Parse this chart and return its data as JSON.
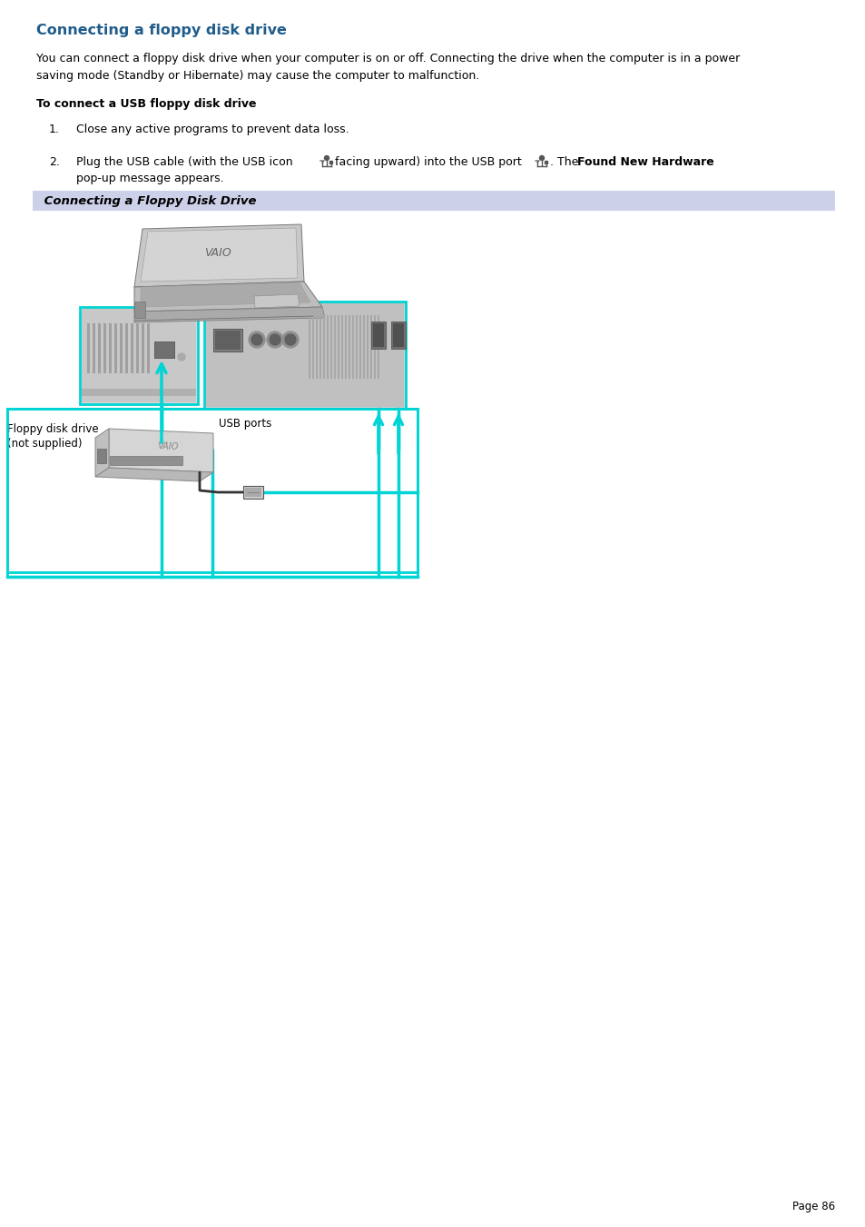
{
  "title": "Connecting a floppy disk drive",
  "title_color": "#1f5c8b",
  "body_text": "You can connect a floppy disk drive when your computer is on or off. Connecting the drive when the computer is in a power\nsaving mode (Standby or Hibernate) may cause the computer to malfunction.",
  "subtitle": "To connect a USB floppy disk drive",
  "step1": "Close any active programs to prevent data loss.",
  "step2a": "Plug the USB cable (with the USB icon ",
  "step2b": " facing upward) into the USB port ",
  "step2c": ". The ",
  "step2_bold": "Found New Hardware",
  "step2d": "pop-up message appears.",
  "caption_text": " Connecting a Floppy Disk Drive",
  "caption_bg": "#ccd0e8",
  "label_floppy_line1": "Floppy disk drive",
  "label_floppy_line2": "(not supplied)",
  "label_usb": "USB ports",
  "page_num": "Page 86",
  "bg_color": "#ffffff",
  "text_color": "#000000",
  "cyan": "#00d4d4",
  "gray_light": "#d8d8d8",
  "gray_mid": "#b0b0b0",
  "gray_dark": "#888888",
  "title_fs": 11.5,
  "body_fs": 9.0,
  "caption_fs": 9.5,
  "label_fs": 8.5,
  "page_fs": 8.5
}
